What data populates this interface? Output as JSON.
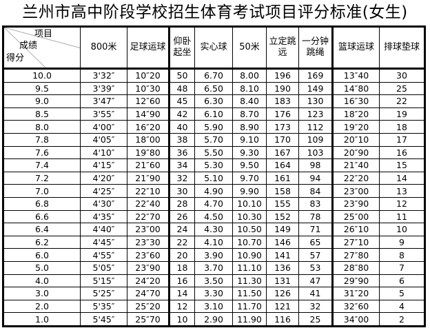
{
  "title": "兰州市高中阶段学校招生体育考试项目评分标准(女生)",
  "table": {
    "header": {
      "corner": [
        "项目",
        "成绩",
        "得分"
      ],
      "columns": [
        "800米",
        "足球运球",
        "仰卧起坐",
        "实心球",
        "50米",
        "立定跳远",
        "一分钟跳绳",
        "篮球运球",
        "排球垫球"
      ]
    },
    "rows": [
      [
        "10.0",
        "3'32″",
        "10″20",
        "50",
        "6.70",
        "8.00",
        "196",
        "169",
        "13″40",
        "30"
      ],
      [
        "9.5",
        "3'39″",
        "10″30",
        "48",
        "6.50",
        "8.10",
        "190",
        "149",
        "14″80",
        "25"
      ],
      [
        "9.0",
        "3'47″",
        "12″60",
        "45",
        "6.30",
        "8.40",
        "183",
        "130",
        "16″30",
        "22"
      ],
      [
        "8.5",
        "3'55″",
        "14″90",
        "42",
        "6.10",
        "8.70",
        "176",
        "123",
        "18″20",
        "19"
      ],
      [
        "8.0",
        "4'00″",
        "16″20",
        "40",
        "5.90",
        "8.90",
        "173",
        "112",
        "19″20",
        "18"
      ],
      [
        "7.8",
        "4'05″",
        "18″00",
        "38",
        "5.70",
        "9.10",
        "170",
        "109",
        "20″10",
        "17"
      ],
      [
        "7.6",
        "4'10″",
        "19″80",
        "36",
        "5.50",
        "9.30",
        "167",
        "103",
        "20″90",
        "16"
      ],
      [
        "7.4",
        "4'15″",
        "21″60",
        "34",
        "5.30",
        "9.50",
        "164",
        "98",
        "21″40",
        "15"
      ],
      [
        "7.2",
        "4'20″",
        "21″90",
        "32",
        "5.10",
        "9.70",
        "161",
        "94",
        "22″20",
        "14"
      ],
      [
        "7.0",
        "4'25″",
        "22″10",
        "30",
        "4.90",
        "9.90",
        "158",
        "84",
        "23″00",
        "13"
      ],
      [
        "6.8",
        "4'30″",
        "22″40",
        "28",
        "4.70",
        "10.10",
        "155",
        "83",
        "23″90",
        "12"
      ],
      [
        "6.6",
        "4'35″",
        "22″70",
        "26",
        "4.50",
        "10.30",
        "152",
        "78",
        "25″00",
        "11"
      ],
      [
        "6.4",
        "4'40″",
        "23″00",
        "24",
        "4.30",
        "10.50",
        "149",
        "71",
        "26″10",
        "10"
      ],
      [
        "6.2",
        "4'45″",
        "23″30",
        "22",
        "4.10",
        "10.70",
        "146",
        "65",
        "27″10",
        "9"
      ],
      [
        "6.0",
        "4'55″",
        "23″60",
        "20",
        "3.90",
        "10.90",
        "141",
        "57",
        "27″80",
        "8"
      ],
      [
        "5.0",
        "5'05″",
        "23″90",
        "18",
        "3.70",
        "11.10",
        "136",
        "53",
        "28″80",
        "7"
      ],
      [
        "4.0",
        "5'15″",
        "24″20",
        "16",
        "3.50",
        "11.30",
        "131",
        "47",
        "29″90",
        "6"
      ],
      [
        "3.0",
        "5'25″",
        "24″70",
        "14",
        "3.30",
        "11.50",
        "126",
        "41",
        "31″20",
        "5"
      ],
      [
        "2.0",
        "5'35″",
        "25″20",
        "12",
        "3.10",
        "11.70",
        "121",
        "32",
        "32″60",
        "4"
      ],
      [
        "1.0",
        "5'45″",
        "25″70",
        "10",
        "2.90",
        "11.90",
        "116",
        "25",
        "34″00",
        "2"
      ]
    ]
  }
}
